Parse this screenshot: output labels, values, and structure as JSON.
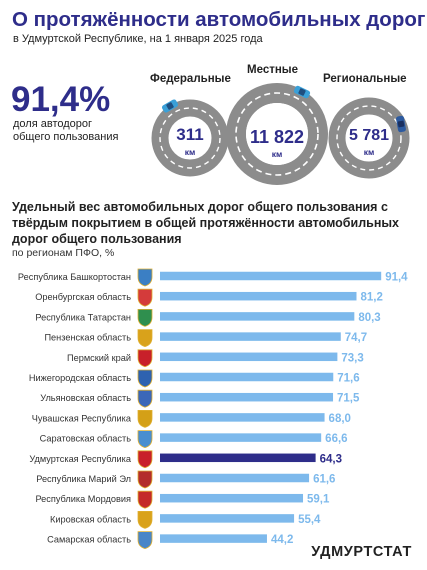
{
  "header": {
    "title": "О протяжённости автомобильных дорог",
    "subtitle": "в Удмуртской Республике, на 1 января 2025 года"
  },
  "summary": {
    "percent": "91,4%",
    "caption": "доля автодорог общего пользования"
  },
  "roads": [
    {
      "label": "Федеральные",
      "value": "311",
      "unit": "км"
    },
    {
      "label": "Местные",
      "value": "11 822",
      "unit": "км"
    },
    {
      "label": "Региональные",
      "value": "5 781",
      "unit": "км"
    }
  ],
  "section": {
    "title": "Удельный вес автомобильных дорог общего пользования с твёрдым покрытием в общей протяжённости автомобильных дорог общего пользования",
    "subtitle": "по регионам ПФО, %"
  },
  "brand": "УДМУРТСТАТ",
  "colors": {
    "accent": "#2e2d8a",
    "bar": "#7db9ec",
    "highlight": "#2e2d8a",
    "road": "#8c8c8c",
    "road_line": "#ffffff"
  },
  "chart_data": {
    "type": "bar",
    "orientation": "horizontal",
    "categories": [
      "Республика Башкортостан",
      "Оренбургская область",
      "Республика Татарстан",
      "Пензенская область",
      "Пермский край",
      "Нижегородская область",
      "Ульяновская область",
      "Чувашская Республика",
      "Саратовская область",
      "Удмуртская Республика",
      "Республика Марий Эл",
      "Республика Мордовия",
      "Кировская область",
      "Самарская область"
    ],
    "values": [
      91.4,
      81.2,
      80.3,
      74.7,
      73.3,
      71.6,
      71.5,
      68.0,
      66.6,
      64.3,
      61.6,
      59.1,
      55.4,
      44.2
    ],
    "value_labels": [
      "91,4",
      "81,2",
      "80,3",
      "74,7",
      "73,3",
      "71,6",
      "71,5",
      "68,0",
      "66,6",
      "64,3",
      "61,6",
      "59,1",
      "55,4",
      "44,2"
    ],
    "highlight": "Удмуртская Республика",
    "xlim": [
      0,
      100
    ],
    "title": "",
    "xlabel": "",
    "ylabel": ""
  }
}
